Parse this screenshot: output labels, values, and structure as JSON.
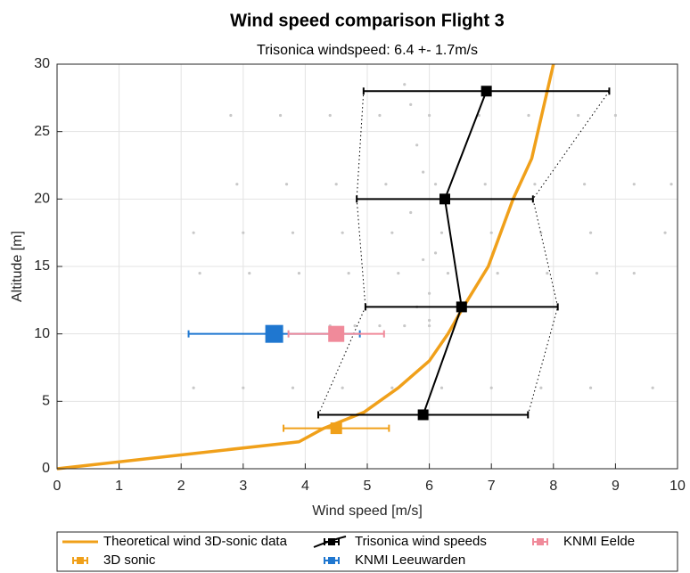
{
  "chart_data": {
    "type": "line",
    "title": "Wind speed comparison Flight 3",
    "subtitle": "Trisonica windspeed: 6.4 +- 1.7m/s",
    "xlabel": "Wind speed [m/s]",
    "ylabel": "Altitude [m]",
    "xlim": [
      0,
      10
    ],
    "ylim": [
      0,
      30
    ],
    "xticks": [
      0,
      1,
      2,
      3,
      4,
      5,
      6,
      7,
      8,
      9,
      10
    ],
    "yticks": [
      0,
      5,
      10,
      15,
      20,
      25,
      30
    ],
    "grid": true,
    "legend": "bottom",
    "raw": {
      "color": "#c8c8c8",
      "x": [
        2.2,
        3.0,
        3.8,
        4.6,
        5.4,
        6.2,
        7.0,
        7.8,
        8.6,
        9.6,
        4.4,
        4.8,
        5.2,
        5.6,
        6.0,
        2.3,
        3.1,
        3.9,
        4.7,
        5.5,
        6.3,
        7.1,
        7.9,
        8.7,
        9.3,
        2.2,
        3.0,
        3.8,
        4.6,
        5.4,
        6.2,
        7.0,
        7.8,
        8.6,
        9.8,
        2.9,
        3.7,
        4.5,
        5.3,
        6.1,
        6.9,
        7.7,
        8.5,
        9.3,
        9.9,
        2.8,
        3.6,
        4.4,
        5.2,
        6.0,
        6.8,
        7.6,
        8.4,
        9.0,
        5.8,
        6.0,
        5.9,
        6.1,
        5.7,
        5.9,
        5.8,
        5.7,
        5.6,
        6.0
      ],
      "values": [
        6,
        6,
        6,
        6,
        6,
        6,
        6,
        6,
        6,
        6,
        10.6,
        10.6,
        10.6,
        10.6,
        10.6,
        14.5,
        14.5,
        14.5,
        14.5,
        14.5,
        14.5,
        14.5,
        14.5,
        14.5,
        14.5,
        17.5,
        17.5,
        17.5,
        17.5,
        17.5,
        17.5,
        17.5,
        17.5,
        17.5,
        17.5,
        21.1,
        21.1,
        21.1,
        21.1,
        21.1,
        21.1,
        21.1,
        21.1,
        21.1,
        21.1,
        26.2,
        26.2,
        26.2,
        26.2,
        26.2,
        26.2,
        26.2,
        26.2,
        26.2,
        12,
        13,
        15.5,
        16,
        19,
        22,
        24,
        27,
        28.5,
        11
      ]
    },
    "series": [
      {
        "name": "Theoretical wind 3D-sonic data",
        "color": "#f0a01a",
        "style": "line",
        "x": [
          0,
          3.9,
          4.3,
          4.95,
          5.5,
          6.0,
          6.3,
          6.55,
          6.95,
          7.35,
          7.65,
          7.9,
          8.0
        ],
        "values": [
          0,
          2,
          3,
          4.2,
          6,
          8,
          10,
          12,
          15,
          20,
          23,
          28,
          30
        ]
      },
      {
        "name": "3D sonic",
        "color": "#f0a01a",
        "style": "errorbar",
        "marker": "square",
        "x": [
          4.5
        ],
        "values": [
          3
        ],
        "xerr": [
          0.85
        ]
      },
      {
        "name": "Trisonica wind speeds",
        "color": "#000000",
        "style": "errorbar-line",
        "marker": "square",
        "envelope": true,
        "x": [
          5.9,
          6.52,
          6.25,
          6.92
        ],
        "values": [
          4,
          12,
          20,
          28
        ],
        "xerr": [
          1.69,
          1.55,
          1.42,
          1.98
        ]
      },
      {
        "name": "KNMI Leeuwarden",
        "color": "#1f77d0",
        "style": "errorbar",
        "marker": "square",
        "x": [
          3.5
        ],
        "values": [
          10
        ],
        "xerr": [
          1.38
        ]
      },
      {
        "name": "KNMI Eelde",
        "color": "#f08a9a",
        "style": "errorbar",
        "marker": "square",
        "x": [
          4.5
        ],
        "values": [
          10
        ],
        "xerr": [
          0.77
        ]
      }
    ]
  }
}
